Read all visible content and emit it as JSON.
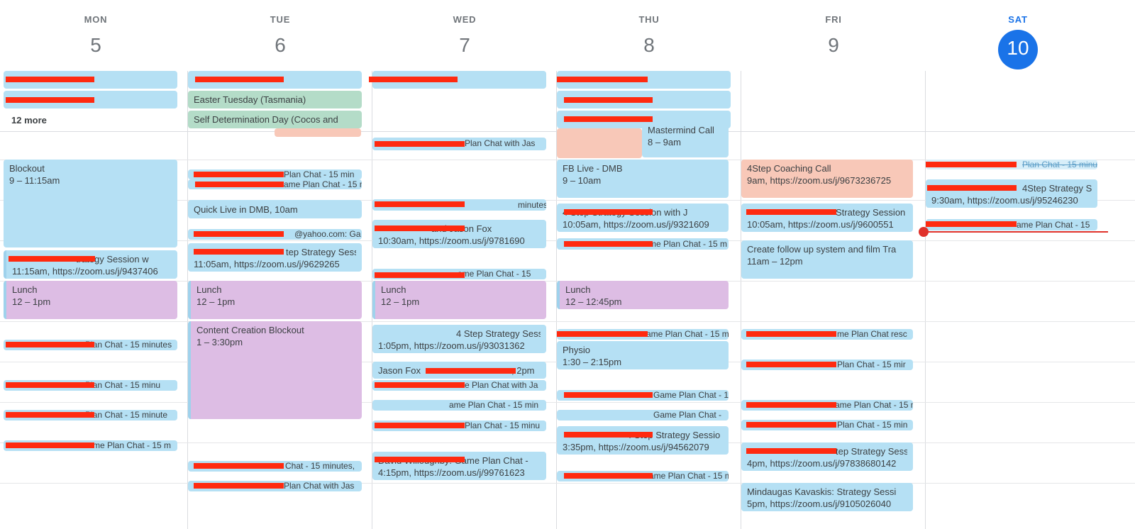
{
  "days": [
    {
      "name": "MON",
      "num": "5"
    },
    {
      "name": "TUE",
      "num": "6"
    },
    {
      "name": "WED",
      "num": "7"
    },
    {
      "name": "THU",
      "num": "8"
    },
    {
      "name": "FRI",
      "num": "9"
    },
    {
      "name": "SAT",
      "num": "10"
    }
  ],
  "more_label": "12 more",
  "events": {
    "tue_easter": "Easter Tuesday (Tasmania)",
    "tue_selfdet": "Self Determination Day (Cocos and",
    "thu_mastermind": "Mastermind Call",
    "thu_mastermind_time": "8 – 9am",
    "wed_gp1": "Plan Chat with Jas",
    "mon_blockout": "Blockout",
    "mon_blockout_time": "9 – 11:15am",
    "tue_gp1": "Plan Chat - 15 min",
    "tue_gp2": "ame Plan Chat - 15 m",
    "tue_quicklive": "Quick Live in DMB",
    "tue_quicklive_time": ", 10am",
    "tue_yahoo": "@yahoo.com: Ga",
    "tue_strategy": "tep Strategy Sessi",
    "tue_strategy_time": "11:05am, https://zoom.us/j/9629265",
    "wed_gp2": "minutes",
    "wed_fox": "and Jason Fox",
    "wed_fox_time": "10:30am, https://zoom.us/j/9781690",
    "wed_gp3": "ame Plan Chat - 15",
    "thu_fblive": "FB Live - DMB",
    "thu_fblive_time": "9 – 10am",
    "thu_strategy": "4 Step Strategy Session with J",
    "thu_strategy_time": "10:05am, https://zoom.us/j/9321609",
    "thu_gp1": "me Plan Chat - 15 m",
    "fri_coaching": "4Step Coaching Call",
    "fri_coaching_time": "9am, https://zoom.us/j/9673236725",
    "fri_strategy": "Strategy Session w",
    "fri_strategy_time": "10:05am, https://zoom.us/j/9600551",
    "fri_followup": "Create follow up system and film Tra",
    "fri_followup_time": "11am – 12pm",
    "sat_gp1": "Plan Chat - 15 minutes",
    "sat_strategy": "4Step Strategy Se",
    "sat_strategy_time": "9:30am, https://zoom.us/j/95246230",
    "sat_gp2": "ame Plan Chat - 15",
    "mon_strategy": "trategy Session w",
    "mon_strategy_time": "11:15am, https://zoom.us/j/9437406",
    "lunch": "Lunch",
    "lunch_time": "12 – 1pm",
    "lunch_time_thu": "12 – 12:45pm",
    "tue_content": "Content Creation Blockout",
    "tue_content_time": "1 – 3:30pm",
    "mon_gp1": "Plan Chat - 15 minutes",
    "mon_gp2": "Plan Chat - 15 minu",
    "mon_gp3": "Plan Chat - 15 minute",
    "mon_gp4": "me Plan Chat - 15 m",
    "wed_webster": "4 Step Strategy Sessi",
    "wed_webster_time": "1:05pm, https://zoom.us/j/93031362",
    "wed_foxliv": "Jason Fox",
    "wed_foxliv_time": ", 2pm",
    "wed_gp4": "e Plan Chat with Ja",
    "wed_gp5": "ame Plan Chat - 15 min",
    "wed_gp6": "Plan Chat - 15 minu",
    "wed_david": "David Willoughby: Game Plan Chat -",
    "wed_david_time": "4:15pm, https://zoom.us/j/99761623",
    "thu_gp2": "ame Plan Chat - 15 m",
    "thu_physio": "Physio",
    "thu_physio_time": "1:30 – 2:15pm",
    "thu_gp3": "Game Plan Chat - 15",
    "thu_gp4": "Game Plan Chat -",
    "thu_strategy2": "4 Step Strategy Sessio",
    "thu_strategy2_time": "3:35pm, https://zoom.us/j/94562079",
    "thu_gp5": "ame Plan Chat - 15 mi",
    "tue_gp3": "Chat - 15 minutes,",
    "tue_gp4": "Plan Chat with Jas",
    "fri_gp1": "me Plan Chat resc",
    "fri_gp2": "Plan Chat - 15 mir",
    "fri_gp3": "ame Plan Chat - 15 m",
    "fri_gp4": "Plan Chat - 15 min",
    "fri_strategy2": "tep Strategy Sessi",
    "fri_strategy2_time": "4pm, https://zoom.us/j/97838680142",
    "fri_mindaugas": "Mindaugas Kavaskis: Strategy Sessi",
    "fri_mindaugas_time": "5pm, https://zoom.us/j/9105026040"
  }
}
